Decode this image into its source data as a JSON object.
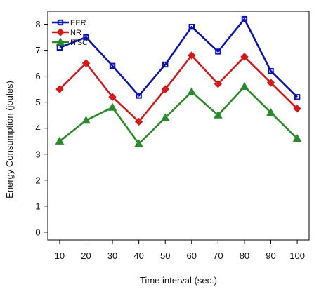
{
  "chart_data": {
    "type": "line",
    "title": "",
    "xlabel": "Time interval (sec.)",
    "ylabel": "Energy Consumption (joules)",
    "x": [
      10,
      20,
      30,
      40,
      50,
      60,
      70,
      80,
      90,
      100
    ],
    "xlim": [
      5.5,
      104.5
    ],
    "ylim": [
      -0.3,
      8.5
    ],
    "yticks": [
      0,
      1,
      2,
      3,
      4,
      5,
      6,
      7,
      8
    ],
    "grid": false,
    "legend_position": "top-left",
    "series": [
      {
        "name": "EER",
        "color": "#0a12b4",
        "marker": "square",
        "values": [
          7.1,
          7.5,
          6.4,
          5.25,
          6.45,
          7.9,
          6.95,
          8.2,
          6.2,
          5.2
        ]
      },
      {
        "name": "NR",
        "color": "#d21a1a",
        "marker": "diamond",
        "values": [
          5.5,
          6.5,
          5.2,
          4.25,
          5.5,
          6.8,
          5.7,
          6.75,
          5.75,
          4.75
        ]
      },
      {
        "name": "ITSC",
        "color": "#2a8a2a",
        "marker": "triangle",
        "values": [
          3.5,
          4.3,
          4.8,
          3.4,
          4.4,
          5.4,
          4.5,
          5.6,
          4.6,
          3.6
        ]
      }
    ]
  }
}
